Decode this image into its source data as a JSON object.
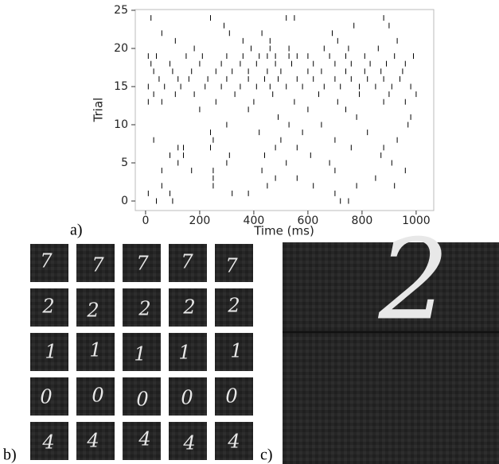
{
  "chart_data": {
    "type": "scatter",
    "x_label": "Time (ms)",
    "y_label": "Trial",
    "color": "#000000",
    "xlim": [
      -38,
      1065
    ],
    "ylim": [
      -1.25,
      25.1
    ],
    "xticks": [
      0,
      200,
      400,
      600,
      800,
      1000
    ],
    "yticks": [
      0,
      5,
      10,
      15,
      20,
      25
    ],
    "x": [
      40,
      100,
      720,
      750,
      10,
      90,
      320,
      380,
      700,
      60,
      250,
      450,
      620,
      780,
      920,
      250,
      480,
      560,
      850,
      60,
      170,
      250,
      430,
      700,
      960,
      120,
      300,
      520,
      680,
      910,
      90,
      140,
      310,
      440,
      610,
      870,
      120,
      140,
      240,
      480,
      560,
      760,
      880,
      30,
      250,
      500,
      700,
      930,
      240,
      420,
      580,
      820,
      300,
      530,
      650,
      970,
      490,
      780,
      980,
      200,
      380,
      600,
      740,
      10,
      60,
      260,
      400,
      550,
      710,
      880,
      960,
      30,
      110,
      180,
      330,
      470,
      640,
      790,
      900,
      1000,
      10,
      70,
      130,
      220,
      280,
      350,
      410,
      460,
      520,
      580,
      660,
      720,
      790,
      850,
      910,
      980,
      50,
      120,
      160,
      230,
      300,
      380,
      440,
      490,
      560,
      620,
      700,
      760,
      820,
      880,
      940,
      30,
      100,
      170,
      260,
      320,
      380,
      450,
      500,
      600,
      650,
      740,
      810,
      870,
      950,
      20,
      90,
      200,
      280,
      350,
      410,
      480,
      540,
      620,
      700,
      760,
      830,
      890,
      960,
      10,
      40,
      150,
      210,
      300,
      360,
      420,
      450,
      480,
      530,
      560,
      600,
      680,
      740,
      810,
      920,
      990,
      180,
      390,
      460,
      530,
      660,
      750,
      860,
      110,
      360,
      460,
      710,
      930,
      60,
      310,
      430,
      690,
      290,
      770,
      900,
      20,
      240,
      520,
      550,
      880
    ],
    "y": [
      0,
      0,
      0,
      0,
      1,
      1,
      1,
      1,
      1,
      2,
      2,
      2,
      2,
      2,
      2,
      3,
      3,
      3,
      3,
      4,
      4,
      4,
      4,
      4,
      4,
      5,
      5,
      5,
      5,
      5,
      6,
      6,
      6,
      6,
      6,
      6,
      7,
      7,
      7,
      7,
      7,
      7,
      7,
      8,
      8,
      8,
      8,
      8,
      9,
      9,
      9,
      9,
      10,
      10,
      10,
      10,
      11,
      11,
      11,
      12,
      12,
      12,
      12,
      13,
      13,
      13,
      13,
      13,
      13,
      13,
      13,
      14,
      14,
      14,
      14,
      14,
      14,
      14,
      14,
      14,
      15,
      15,
      15,
      15,
      15,
      15,
      15,
      15,
      15,
      15,
      15,
      15,
      15,
      15,
      15,
      15,
      16,
      16,
      16,
      16,
      16,
      16,
      16,
      16,
      16,
      16,
      16,
      16,
      16,
      16,
      16,
      17,
      17,
      17,
      17,
      17,
      17,
      17,
      17,
      17,
      17,
      17,
      17,
      17,
      17,
      18,
      18,
      18,
      18,
      18,
      18,
      18,
      18,
      18,
      18,
      18,
      18,
      18,
      18,
      19,
      19,
      19,
      19,
      19,
      19,
      19,
      19,
      19,
      19,
      19,
      19,
      19,
      19,
      19,
      19,
      19,
      20,
      20,
      20,
      20,
      20,
      20,
      20,
      21,
      21,
      21,
      21,
      21,
      22,
      22,
      22,
      22,
      23,
      23,
      23,
      24,
      24,
      24,
      24,
      24
    ]
  },
  "panel_labels": [
    "a)",
    "b)",
    "c)"
  ],
  "digit_grid": [
    [
      "7",
      "7",
      "7",
      "7",
      "7"
    ],
    [
      "2",
      "2",
      "2",
      "2",
      "2"
    ],
    [
      "1",
      "1",
      "1",
      "1",
      "1"
    ],
    [
      "0",
      "0",
      "0",
      "0",
      "0"
    ],
    [
      "4",
      "4",
      "4",
      "4",
      "4"
    ]
  ],
  "large_digit": "2"
}
